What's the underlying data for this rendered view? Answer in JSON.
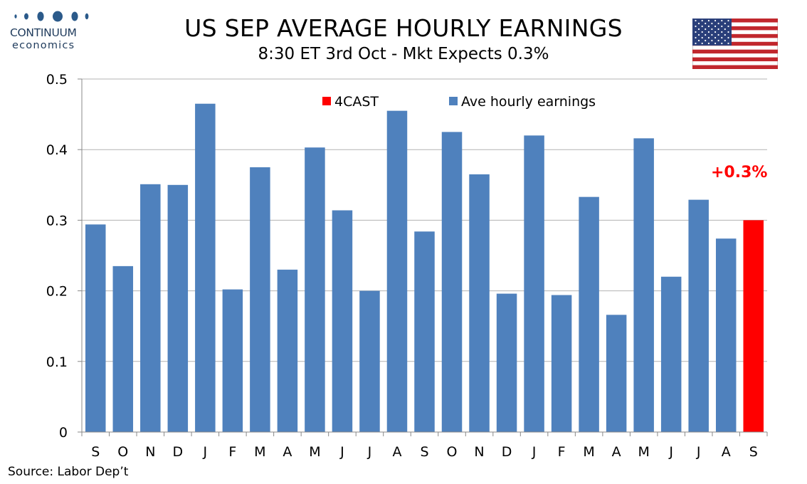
{
  "logo": {
    "name": "CONTINUUM",
    "subname": "economics"
  },
  "source": "Source: Labor Dep’t",
  "colors": {
    "actual": "#4f81bd",
    "forecast": "#ff0000",
    "annotation": "#ff0000",
    "gridline": "#b3b3b3",
    "logo": "#1f3b5c"
  },
  "icons": {
    "flag": "us-flag-icon"
  },
  "chart_data": {
    "type": "bar",
    "title": "US SEP AVERAGE HOURLY EARNINGS",
    "subtitle": "8:30 ET 3rd Oct - Mkt Expects 0.3%",
    "categories": [
      "S",
      "O",
      "N",
      "D",
      "J",
      "F",
      "M",
      "A",
      "M",
      "J",
      "J",
      "A",
      "S",
      "O",
      "N",
      "D",
      "J",
      "F",
      "M",
      "A",
      "M",
      "J",
      "J",
      "A",
      "S"
    ],
    "series": [
      {
        "name": "Ave hourly earnings",
        "color": "#4f81bd",
        "values": [
          0.294,
          0.235,
          0.351,
          0.35,
          0.465,
          0.202,
          0.375,
          0.23,
          0.403,
          0.314,
          0.2,
          0.455,
          0.284,
          0.425,
          0.365,
          0.196,
          0.42,
          0.194,
          0.333,
          0.166,
          0.416,
          0.22,
          0.329,
          0.274,
          null
        ]
      },
      {
        "name": "4CAST",
        "color": "#ff0000",
        "values": [
          null,
          null,
          null,
          null,
          null,
          null,
          null,
          null,
          null,
          null,
          null,
          null,
          null,
          null,
          null,
          null,
          null,
          null,
          null,
          null,
          null,
          null,
          null,
          null,
          0.3
        ]
      }
    ],
    "ylim": [
      0,
      0.5
    ],
    "yticks": [
      "0",
      "0.1",
      "0.2",
      "0.3",
      "0.4",
      "0.5"
    ],
    "ytick_values": [
      0,
      0.1,
      0.2,
      0.3,
      0.4,
      0.5
    ],
    "xlabel": "",
    "ylabel": "",
    "grid": true,
    "legend_position": "top",
    "annotations": [
      {
        "text": "+0.3%",
        "category_index": 24
      }
    ]
  }
}
